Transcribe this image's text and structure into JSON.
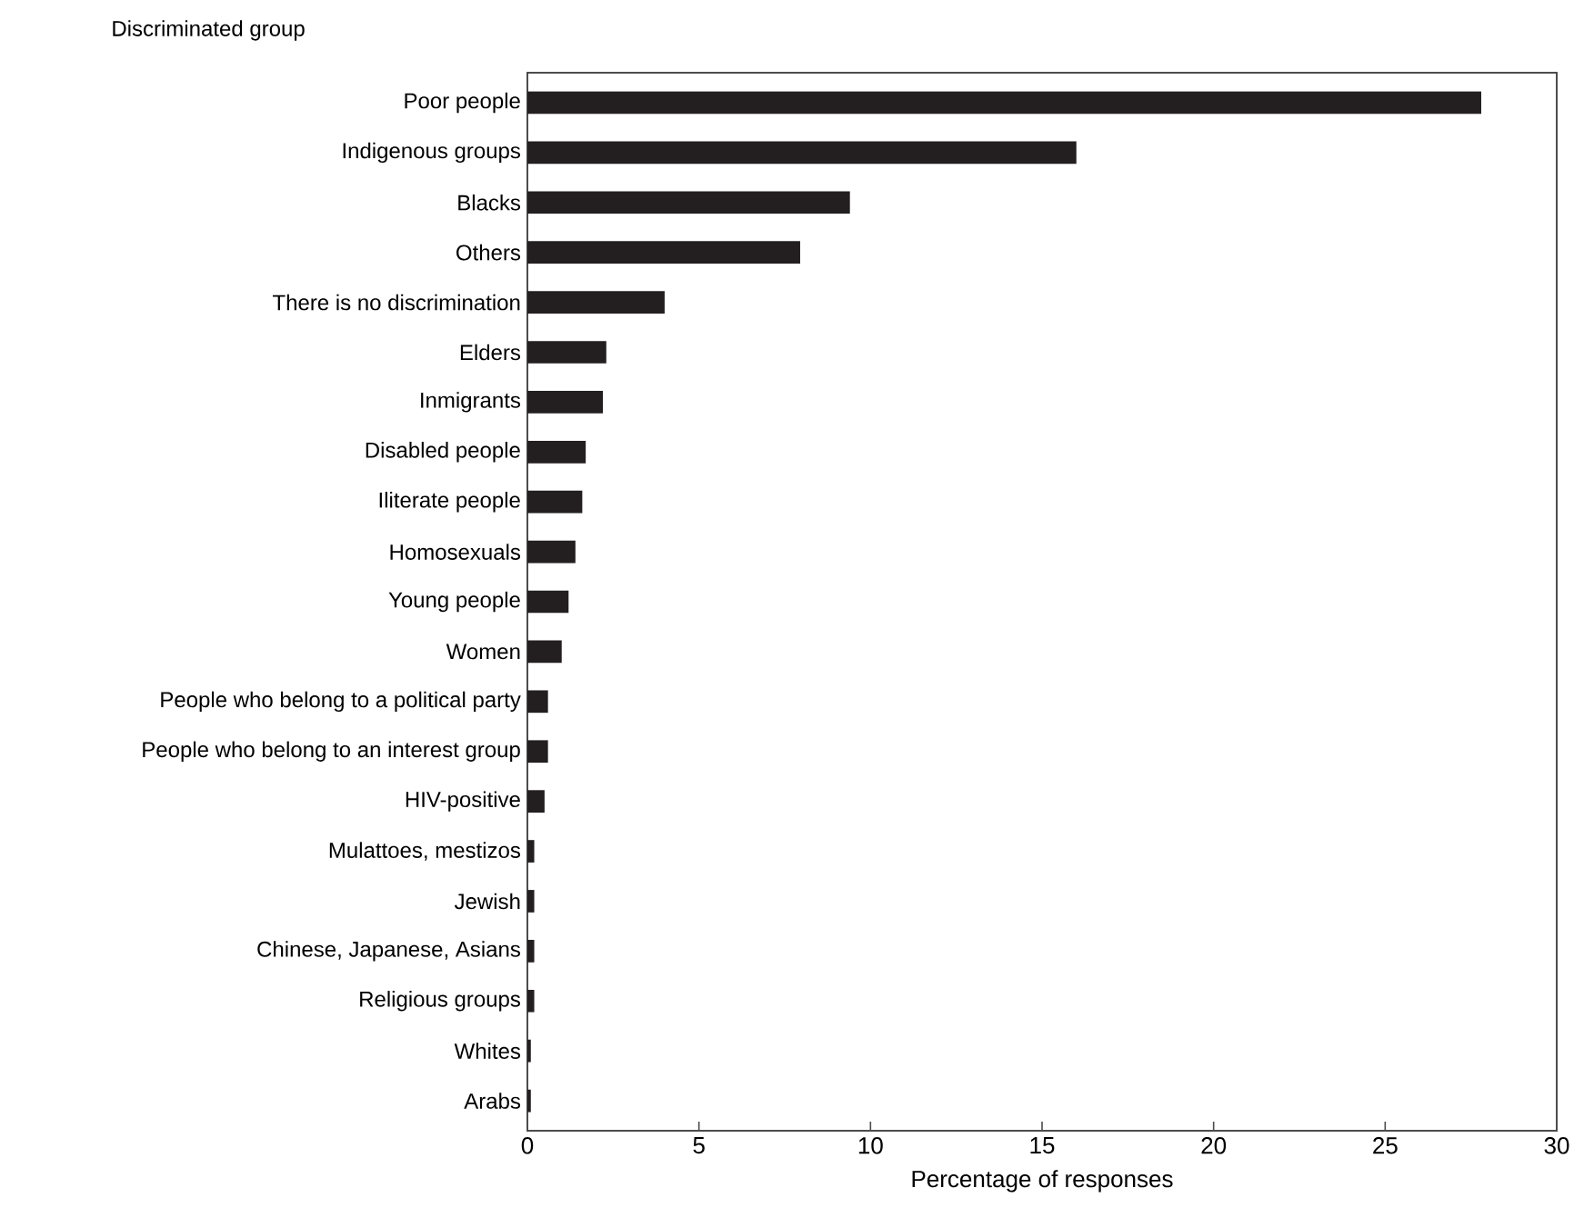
{
  "chart_data": {
    "type": "bar",
    "orientation": "horizontal",
    "ylabel": "Discriminated group",
    "xlabel": "Percentage of responses",
    "categories": [
      "Poor people",
      "Indigenous groups",
      "Blacks",
      "Others",
      "There is no discrimination",
      "Elders",
      "Inmigrants",
      "Disabled people",
      "Iliterate people",
      "Homosexuals",
      "Young people",
      "Women",
      "People who belong to a political party",
      "People who belong to an interest group",
      "HIV-positive",
      "Mulattoes, mestizos",
      "Jewish",
      "Chinese, Japanese, Asians",
      "Religious groups",
      "Whites",
      "Arabs"
    ],
    "values": [
      27.8,
      16.0,
      9.4,
      7.95,
      4.0,
      2.3,
      2.2,
      1.7,
      1.6,
      1.4,
      1.2,
      1.0,
      0.6,
      0.6,
      0.5,
      0.2,
      0.2,
      0.2,
      0.2,
      0.1,
      0.1
    ],
    "color": "#231f20",
    "xlim": [
      0,
      30
    ],
    "xticks": [
      0,
      5,
      10,
      15,
      20,
      25,
      30
    ]
  }
}
